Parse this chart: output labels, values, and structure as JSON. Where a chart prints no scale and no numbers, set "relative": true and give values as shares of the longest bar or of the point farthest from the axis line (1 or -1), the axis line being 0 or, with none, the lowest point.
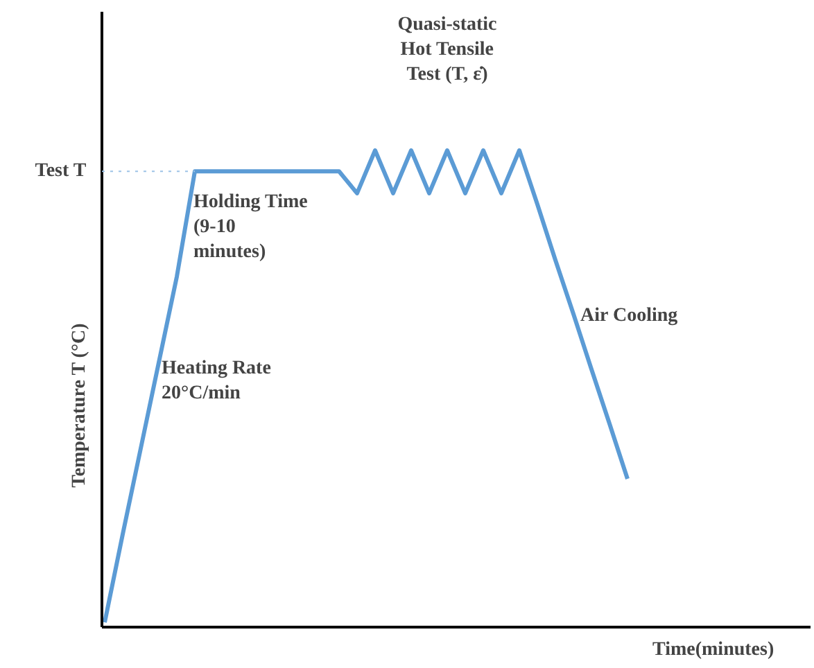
{
  "chart_data": {
    "type": "line",
    "relative": true,
    "xlabel": "Time(minutes)",
    "ylabel": "Temperature  T (°C)",
    "categories": [
      null,
      null,
      null,
      null,
      null,
      null,
      null,
      null,
      null,
      null,
      null,
      null,
      null,
      null,
      null,
      null,
      null,
      null,
      null,
      null,
      null,
      null,
      null,
      null,
      null,
      null,
      null,
      null,
      null,
      null
    ],
    "series": [
      {
        "color": "#5b9bd5",
        "values": [
          0.01,
          0.195,
          0.375,
          0.555,
          0.735,
          0.956,
          0.956,
          0.956,
          0.956,
          0.956,
          0.956,
          0.956,
          0.956,
          0.956,
          0.91,
          1,
          0.91,
          1,
          0.91,
          1,
          0.91,
          1,
          0.91,
          1,
          0.887,
          0.77,
          0.657,
          0.541,
          0.427,
          0.311
        ]
      }
    ],
    "ref_lines": [
      {
        "axis": "y",
        "value": 0.956,
        "label": "Test T",
        "color": "#9dc3e6",
        "line_style": "dotted"
      }
    ],
    "annotations": [
      "Holding Time\n(9-10\nminutes)",
      "Quasi-static\nHot Tensile\nTest (T, ε̇)",
      "Air Cooling",
      "Heating Rate\n20°C/min"
    ],
    "grid": false,
    "marker": "none",
    "line_style": "solid"
  }
}
